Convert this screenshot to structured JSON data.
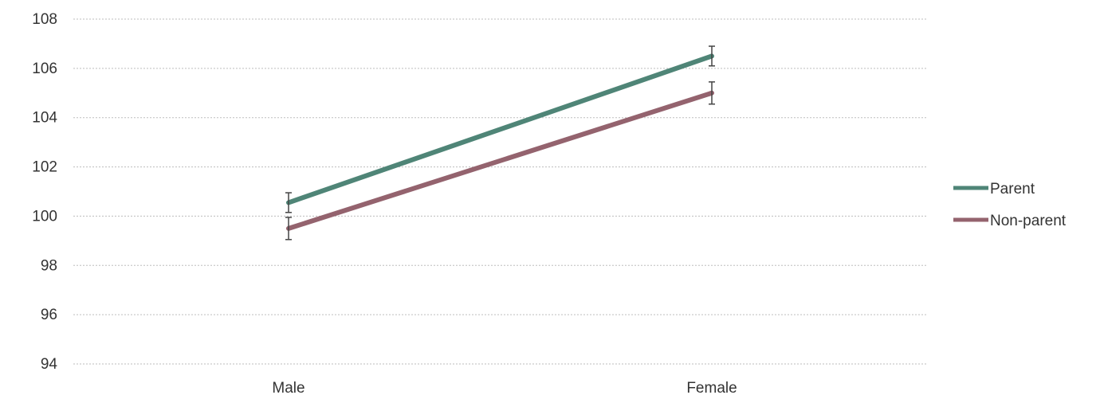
{
  "chart_data": {
    "type": "line",
    "title": "",
    "xlabel": "",
    "ylabel": "",
    "categories": [
      "Male",
      "Female"
    ],
    "ylim": [
      94,
      108
    ],
    "yticks": [
      94,
      96,
      98,
      100,
      102,
      104,
      106,
      108
    ],
    "grid": true,
    "legend_position": "right",
    "series": [
      {
        "name": "Parent",
        "color": "#4f8577",
        "values": [
          100.55,
          106.5
        ],
        "errors": [
          0.4,
          0.4
        ]
      },
      {
        "name": "Non-parent",
        "color": "#94636e",
        "values": [
          99.5,
          105.0
        ],
        "errors": [
          0.45,
          0.45
        ]
      }
    ]
  }
}
